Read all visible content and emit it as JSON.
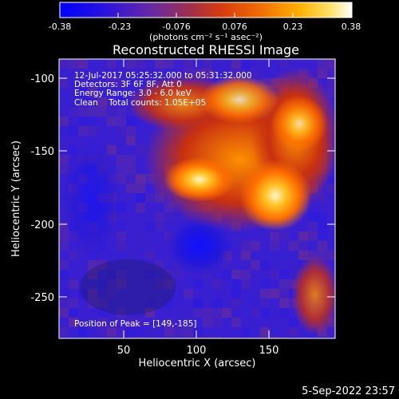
{
  "colorbar": {
    "ticks": [
      "-0.38",
      "-0.23",
      "-0.076",
      "0.076",
      "0.23",
      "0.38"
    ],
    "units": "(photons cm⁻² s⁻¹ asec⁻²)",
    "colors": [
      "#0000ff",
      "#3a1fd0",
      "#7a2a8a",
      "#b0302a",
      "#e04010",
      "#ff7a00",
      "#ffb400",
      "#ffe070",
      "#ffffff"
    ]
  },
  "image": {
    "title": "Reconstructed RHESSI Image",
    "info_lines": [
      "12-Jul-2017 05:25:32.000 to 05:31:32.000",
      "Detectors: 3F 6F 8F, Att 0",
      "Energy Range: 3.0 - 6.0 keV",
      "Clean    Total counts: 1.05E+05"
    ],
    "peak_label": "Position of Peak = [149,-185]",
    "xlabel": "Heliocentric X (arcsec)",
    "ylabel": "Heliocentric Y (arcsec)",
    "xticks": [
      "50",
      "100",
      "150"
    ],
    "yticks": [
      "-100",
      "-150",
      "-200",
      "-250"
    ],
    "xlim": [
      5,
      195
    ],
    "ylim": [
      -280,
      -88
    ],
    "peak": [
      149,
      -185
    ],
    "footer_date": "5-Sep-2022 23:57"
  }
}
